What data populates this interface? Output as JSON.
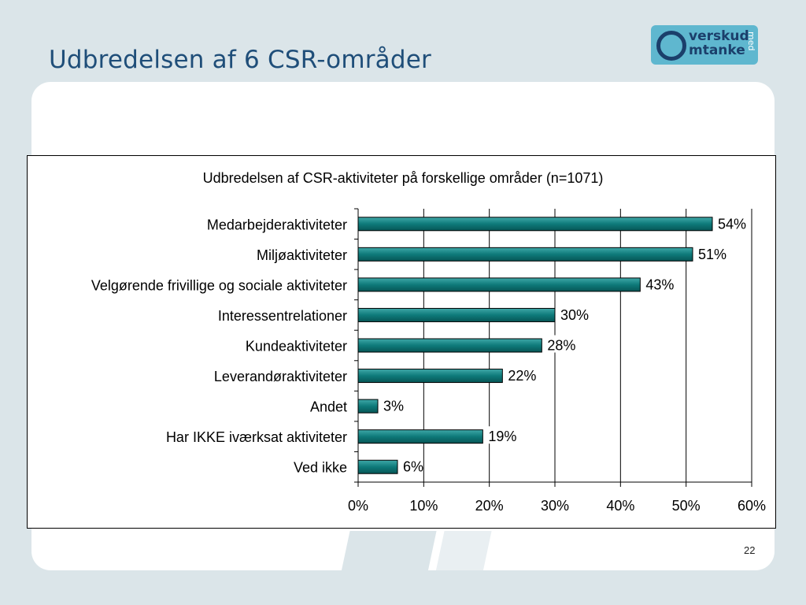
{
  "slide": {
    "title": "Udbredelsen af 6 CSR-områder",
    "page_number": "22"
  },
  "logo": {
    "word1": "verskud",
    "word2": "mtanke",
    "word3": "med"
  },
  "colors": {
    "background": "#dbe5e9",
    "title": "#1f4e79",
    "bar": "#0e7a7a",
    "logo": "#5fb7cf"
  },
  "chart_data": {
    "type": "bar",
    "orientation": "horizontal",
    "title": "Udbredelsen af CSR-aktiviteter på forskellige områder (n=1071)",
    "categories": [
      "Medarbejderaktiviteter",
      "Miljøaktiviteter",
      "Velgørende frivillige og sociale aktiviteter",
      "Interessentrelationer",
      "Kundeaktiviteter",
      "Leverandøraktiviteter",
      "Andet",
      "Har IKKE iværksat aktiviteter",
      "Ved ikke"
    ],
    "values": [
      54,
      51,
      43,
      30,
      28,
      22,
      3,
      19,
      6
    ],
    "data_labels": [
      "54%",
      "51%",
      "43%",
      "30%",
      "28%",
      "22%",
      "3%",
      "19%",
      "6%"
    ],
    "xlim": [
      0,
      60
    ],
    "xticks": [
      "0%",
      "10%",
      "20%",
      "30%",
      "40%",
      "50%",
      "60%"
    ],
    "grid": "vertical",
    "legend": "none"
  }
}
